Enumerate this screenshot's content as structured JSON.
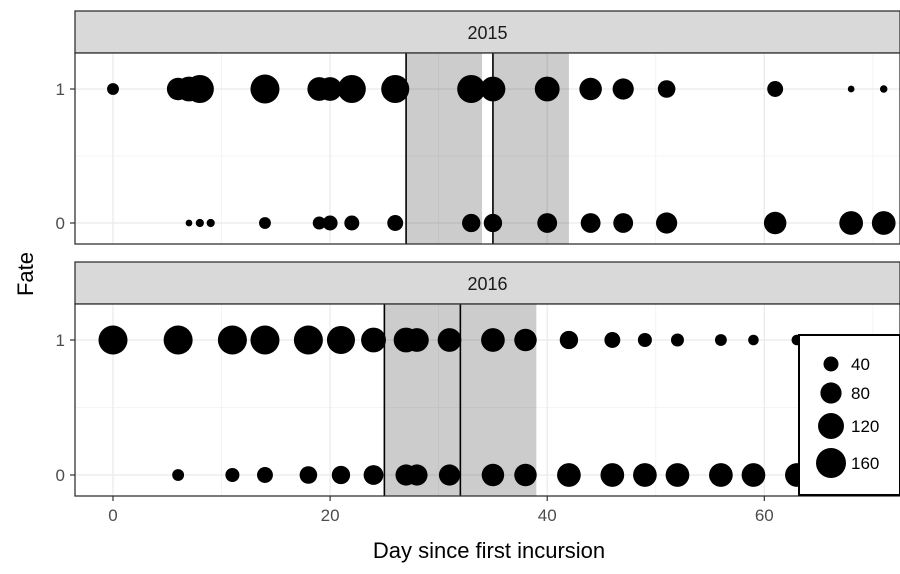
{
  "chart_data": {
    "type": "scatter",
    "xlabel": "Day since first incursion",
    "ylabel": "Fate",
    "xlim": [
      -3.5,
      72.5
    ],
    "xticks": [
      0,
      20,
      40,
      60
    ],
    "yticks": [
      0,
      1
    ],
    "grid": true,
    "legend": {
      "placement": "bottom-right, inside lower panel",
      "title": "",
      "sizes": [
        40,
        80,
        120,
        160
      ]
    },
    "panels": [
      {
        "label": "2015",
        "vlines": [
          27,
          35
        ],
        "shaded": [
          [
            27,
            34
          ],
          [
            35,
            42
          ]
        ],
        "fate1": [
          {
            "x": 0,
            "size": 25
          },
          {
            "x": 6,
            "size": 90
          },
          {
            "x": 7,
            "size": 110
          },
          {
            "x": 8,
            "size": 140
          },
          {
            "x": 14,
            "size": 150
          },
          {
            "x": 19,
            "size": 100
          },
          {
            "x": 20,
            "size": 100
          },
          {
            "x": 22,
            "size": 140
          },
          {
            "x": 26,
            "size": 140
          },
          {
            "x": 33,
            "size": 140
          },
          {
            "x": 35,
            "size": 110
          },
          {
            "x": 40,
            "size": 110
          },
          {
            "x": 44,
            "size": 90
          },
          {
            "x": 47,
            "size": 80
          },
          {
            "x": 51,
            "size": 55
          },
          {
            "x": 61,
            "size": 45
          },
          {
            "x": 68,
            "size": 8
          },
          {
            "x": 71,
            "size": 10
          }
        ],
        "fate0": [
          {
            "x": 7,
            "size": 8
          },
          {
            "x": 8,
            "size": 12
          },
          {
            "x": 9,
            "size": 12
          },
          {
            "x": 14,
            "size": 25
          },
          {
            "x": 19,
            "size": 30
          },
          {
            "x": 20,
            "size": 40
          },
          {
            "x": 22,
            "size": 40
          },
          {
            "x": 26,
            "size": 45
          },
          {
            "x": 33,
            "size": 60
          },
          {
            "x": 35,
            "size": 60
          },
          {
            "x": 40,
            "size": 70
          },
          {
            "x": 44,
            "size": 70
          },
          {
            "x": 47,
            "size": 70
          },
          {
            "x": 51,
            "size": 80
          },
          {
            "x": 61,
            "size": 90
          },
          {
            "x": 68,
            "size": 100
          },
          {
            "x": 71,
            "size": 100
          }
        ]
      },
      {
        "label": "2016",
        "vlines": [
          25,
          32
        ],
        "shaded": [
          [
            25,
            32
          ],
          [
            32,
            39
          ]
        ],
        "fate1": [
          {
            "x": 0,
            "size": 150
          },
          {
            "x": 6,
            "size": 150
          },
          {
            "x": 11,
            "size": 150
          },
          {
            "x": 14,
            "size": 150
          },
          {
            "x": 18,
            "size": 150
          },
          {
            "x": 21,
            "size": 140
          },
          {
            "x": 24,
            "size": 110
          },
          {
            "x": 27,
            "size": 110
          },
          {
            "x": 28,
            "size": 100
          },
          {
            "x": 31,
            "size": 100
          },
          {
            "x": 35,
            "size": 100
          },
          {
            "x": 38,
            "size": 90
          },
          {
            "x": 42,
            "size": 60
          },
          {
            "x": 46,
            "size": 45
          },
          {
            "x": 49,
            "size": 35
          },
          {
            "x": 52,
            "size": 30
          },
          {
            "x": 56,
            "size": 25
          },
          {
            "x": 59,
            "size": 20
          },
          {
            "x": 63,
            "size": 20
          }
        ],
        "fate0": [
          {
            "x": 6,
            "size": 25
          },
          {
            "x": 11,
            "size": 35
          },
          {
            "x": 14,
            "size": 45
          },
          {
            "x": 18,
            "size": 55
          },
          {
            "x": 21,
            "size": 60
          },
          {
            "x": 24,
            "size": 70
          },
          {
            "x": 27,
            "size": 80
          },
          {
            "x": 28,
            "size": 80
          },
          {
            "x": 31,
            "size": 80
          },
          {
            "x": 35,
            "size": 90
          },
          {
            "x": 38,
            "size": 90
          },
          {
            "x": 42,
            "size": 100
          },
          {
            "x": 46,
            "size": 100
          },
          {
            "x": 49,
            "size": 100
          },
          {
            "x": 52,
            "size": 100
          },
          {
            "x": 56,
            "size": 100
          },
          {
            "x": 59,
            "size": 100
          },
          {
            "x": 63,
            "size": 100
          }
        ]
      }
    ]
  }
}
